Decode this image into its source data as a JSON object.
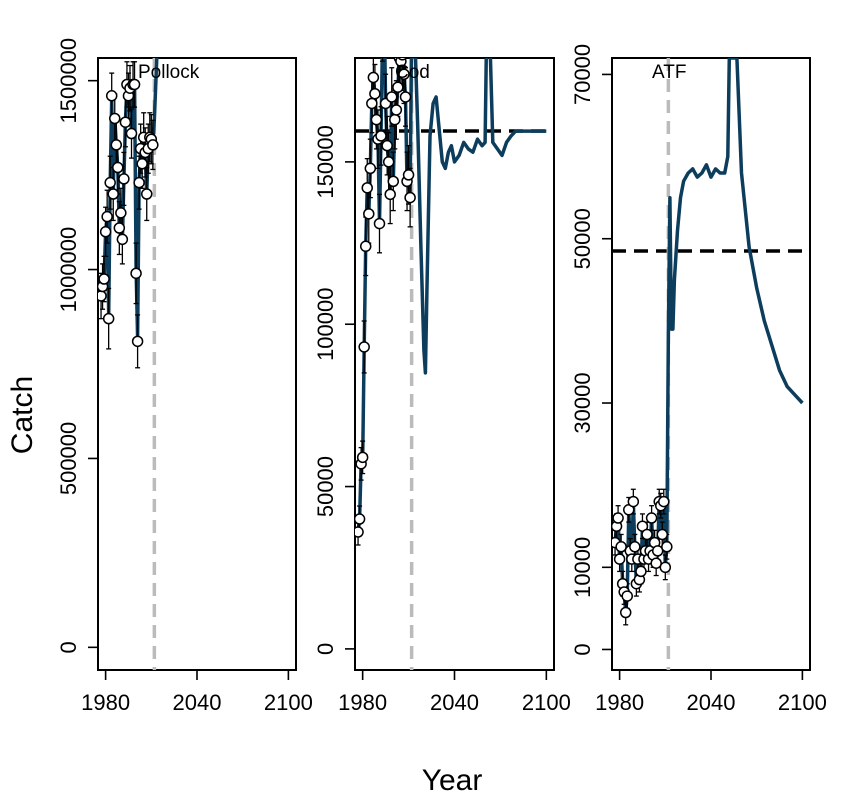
{
  "figure": {
    "ylabel": "Catch",
    "xlabel": "Year",
    "line_color": "#0d3d5c",
    "reference_line_color": "#bbbbbb",
    "target_line_color": "#000000"
  },
  "chart_data": [
    {
      "type": "line",
      "title": "Pollock",
      "xlim": [
        1975,
        2105
      ],
      "ylim": [
        -60000,
        1560000
      ],
      "x_ticks": [
        1980,
        2040,
        2100
      ],
      "y_ticks": [
        0,
        500000,
        1000000,
        1500000
      ],
      "y_tick_labels": [
        "0",
        "500000",
        "1000000",
        "1500000"
      ],
      "vline_year": 2012,
      "target_catch": null,
      "observed_years": [
        1977,
        1978,
        1979,
        1980,
        1981,
        1982,
        1983,
        1984,
        1985,
        1986,
        1987,
        1988,
        1989,
        1990,
        1991,
        1992,
        1993,
        1994,
        1995,
        1996,
        1997,
        1998,
        1999,
        2000,
        2001,
        2002,
        2003,
        2004,
        2005,
        2006,
        2007,
        2008,
        2009,
        2010,
        2011
      ],
      "observed_catch": [
        930000,
        955000,
        975000,
        1100000,
        1140000,
        870000,
        1230000,
        1460000,
        1200000,
        1400000,
        1330000,
        1270000,
        1110000,
        1150000,
        1080000,
        1240000,
        1390000,
        1490000,
        1460000,
        1480000,
        1360000,
        1490000,
        1490000,
        990000,
        810000,
        1230000,
        1320000,
        1280000,
        1350000,
        1310000,
        1200000,
        1320000,
        1350000,
        1345000,
        1330000
      ],
      "observed_error": [
        60000,
        60000,
        60000,
        65000,
        70000,
        80000,
        70000,
        60000,
        70000,
        65000,
        70000,
        70000,
        70000,
        65000,
        65000,
        70000,
        65000,
        60000,
        60000,
        60000,
        65000,
        60000,
        60000,
        80000,
        70000,
        70000,
        65000,
        65000,
        65000,
        65000,
        70000,
        65000,
        65000,
        65000,
        65000
      ],
      "model_years": [
        1977,
        1978,
        1979,
        1980,
        1981,
        1982,
        1983,
        1984,
        1985,
        1986,
        1987,
        1988,
        1989,
        1990,
        1991,
        1992,
        1993,
        1994,
        1995,
        1996,
        1997,
        1998,
        1999,
        2000,
        2001,
        2002,
        2003,
        2004,
        2005,
        2006,
        2007,
        2008,
        2009,
        2010,
        2011,
        2012,
        2013,
        2014
      ],
      "model_catch": [
        930000,
        955000,
        975000,
        1100000,
        1140000,
        880000,
        1230000,
        1450000,
        1200000,
        1400000,
        1330000,
        1270000,
        1110000,
        1150000,
        1080000,
        1240000,
        1390000,
        1480000,
        1460000,
        1480000,
        1360000,
        1480000,
        1480000,
        1000000,
        820000,
        1230000,
        1320000,
        1280000,
        1350000,
        1310000,
        1200000,
        1320000,
        1350000,
        1345000,
        1330000,
        1400000,
        1500000,
        1600000
      ]
    },
    {
      "type": "line",
      "title": "Cod",
      "xlim": [
        1975,
        2105
      ],
      "ylim": [
        -6500,
        182000
      ],
      "x_ticks": [
        1980,
        2040,
        2100
      ],
      "y_ticks": [
        0,
        50000,
        100000,
        150000
      ],
      "y_tick_labels": [
        "0",
        "50000",
        "100000",
        "150000"
      ],
      "vline_year": 2012,
      "target_catch": 159500,
      "observed_years": [
        1977,
        1978,
        1979,
        1980,
        1981,
        1982,
        1983,
        1984,
        1985,
        1986,
        1987,
        1988,
        1989,
        1990,
        1991,
        1992,
        1993,
        1994,
        1995,
        1996,
        1997,
        1998,
        1999,
        2000,
        2001,
        2002,
        2003,
        2004,
        2005,
        2006,
        2007,
        2008,
        2009,
        2010,
        2011
      ],
      "observed_catch": [
        36000,
        40000,
        57000,
        59000,
        93000,
        124000,
        142000,
        134000,
        148000,
        168000,
        176000,
        171000,
        163000,
        157000,
        131000,
        158000,
        190000,
        200000,
        168000,
        155000,
        150000,
        140000,
        170000,
        144000,
        163000,
        166000,
        173000,
        182000,
        181000,
        183000,
        177000,
        170000,
        144000,
        146000,
        139000
      ],
      "observed_error": [
        4000,
        4000,
        5000,
        5000,
        8000,
        9000,
        9000,
        9000,
        9000,
        9000,
        9000,
        9000,
        9000,
        9000,
        9000,
        9000,
        9000,
        9000,
        9000,
        9000,
        9000,
        9000,
        9000,
        9000,
        9000,
        9000,
        9000,
        9000,
        9000,
        9000,
        9000,
        9000,
        9000,
        9000,
        9000
      ],
      "model_years": [
        1977,
        1978,
        1979,
        1980,
        1981,
        1982,
        1983,
        1984,
        1985,
        1986,
        1987,
        1988,
        1989,
        1990,
        1991,
        1992,
        1993,
        1994,
        1995,
        1996,
        1997,
        1998,
        1999,
        2000,
        2001,
        2002,
        2003,
        2004,
        2005,
        2006,
        2007,
        2008,
        2009,
        2010,
        2011,
        2012,
        2014,
        2016,
        2018,
        2020,
        2021,
        2022,
        2024,
        2026,
        2028,
        2030,
        2032,
        2034,
        2036,
        2038,
        2040,
        2043,
        2046,
        2049,
        2052,
        2055,
        2058,
        2060,
        2061,
        2063,
        2065,
        2068,
        2071,
        2074,
        2077,
        2080,
        2085,
        2090,
        2095,
        2100
      ],
      "model_catch": [
        36000,
        40000,
        57000,
        59000,
        93000,
        124000,
        142000,
        134000,
        148000,
        168000,
        176000,
        171000,
        163000,
        157000,
        131000,
        158000,
        190000,
        200000,
        168000,
        155000,
        150000,
        140000,
        170000,
        144000,
        163000,
        166000,
        173000,
        182000,
        181000,
        183000,
        177000,
        170000,
        144000,
        146000,
        139000,
        190000,
        190000,
        160000,
        125000,
        92000,
        85000,
        110000,
        158000,
        168000,
        170000,
        160000,
        150000,
        148000,
        153000,
        155000,
        150000,
        152000,
        156000,
        154000,
        153000,
        157000,
        155000,
        156000,
        190000,
        190000,
        156000,
        154000,
        152000,
        156000,
        158000,
        159500,
        159500,
        159500,
        159500,
        159500
      ]
    },
    {
      "type": "line",
      "title": "ATF",
      "xlim": [
        1975,
        2105
      ],
      "ylim": [
        -2500,
        72000
      ],
      "x_ticks": [
        1980,
        2040,
        2100
      ],
      "y_ticks": [
        0,
        10000,
        30000,
        50000,
        70000
      ],
      "y_tick_labels": [
        "0",
        "10000",
        "30000",
        "50000",
        "70000"
      ],
      "vline_year": 2012,
      "target_catch": 48500,
      "observed_years": [
        1977,
        1978,
        1979,
        1980,
        1981,
        1982,
        1983,
        1984,
        1985,
        1986,
        1987,
        1988,
        1989,
        1990,
        1991,
        1992,
        1993,
        1994,
        1995,
        1996,
        1997,
        1998,
        1999,
        2000,
        2001,
        2002,
        2003,
        2004,
        2005,
        2006,
        2007,
        2008,
        2009,
        2010,
        2011
      ],
      "observed_catch": [
        13000,
        15000,
        16000,
        11000,
        12500,
        8000,
        7000,
        4500,
        6500,
        17000,
        12000,
        11000,
        18000,
        12500,
        8000,
        11000,
        8500,
        9500,
        15000,
        11000,
        12000,
        14000,
        11000,
        12000,
        16000,
        11500,
        13000,
        10500,
        12000,
        18000,
        17500,
        14000,
        18000,
        10000,
        12500
      ],
      "observed_error": [
        1500,
        1500,
        1500,
        1500,
        1500,
        1500,
        1500,
        1500,
        1500,
        1500,
        1500,
        1500,
        1500,
        1500,
        1500,
        1500,
        1500,
        1500,
        1500,
        1500,
        1500,
        1500,
        1500,
        1500,
        1500,
        1500,
        1500,
        1500,
        1500,
        1500,
        1500,
        1500,
        1500,
        1500,
        1500
      ],
      "model_years": [
        1977,
        1978,
        1979,
        1980,
        1981,
        1982,
        1983,
        1984,
        1985,
        1986,
        1987,
        1988,
        1989,
        1990,
        1991,
        1992,
        1993,
        1994,
        1995,
        1996,
        1997,
        1998,
        1999,
        2000,
        2001,
        2002,
        2003,
        2004,
        2005,
        2006,
        2007,
        2008,
        2009,
        2010,
        2011,
        2012,
        2013,
        2014,
        2015,
        2016,
        2018,
        2020,
        2022,
        2025,
        2028,
        2031,
        2034,
        2037,
        2040,
        2043,
        2046,
        2049,
        2051,
        2052,
        2053,
        2055,
        2057,
        2060,
        2065,
        2070,
        2075,
        2080,
        2085,
        2090,
        2095,
        2100
      ],
      "model_catch": [
        13000,
        15000,
        16000,
        11000,
        12500,
        8000,
        7000,
        4500,
        6500,
        17000,
        12000,
        11000,
        18000,
        12500,
        8000,
        11000,
        8500,
        9500,
        15000,
        11000,
        12000,
        14000,
        11000,
        12000,
        16000,
        11500,
        13000,
        10500,
        12000,
        18000,
        17500,
        14000,
        18000,
        10000,
        12500,
        39000,
        55000,
        39000,
        39000,
        45000,
        51000,
        55000,
        57000,
        58000,
        58500,
        57500,
        58000,
        59000,
        57500,
        58500,
        58000,
        58000,
        60000,
        72000,
        72000,
        72000,
        72000,
        58000,
        49000,
        44000,
        40000,
        37000,
        34000,
        32000,
        31000,
        30000
      ]
    }
  ]
}
